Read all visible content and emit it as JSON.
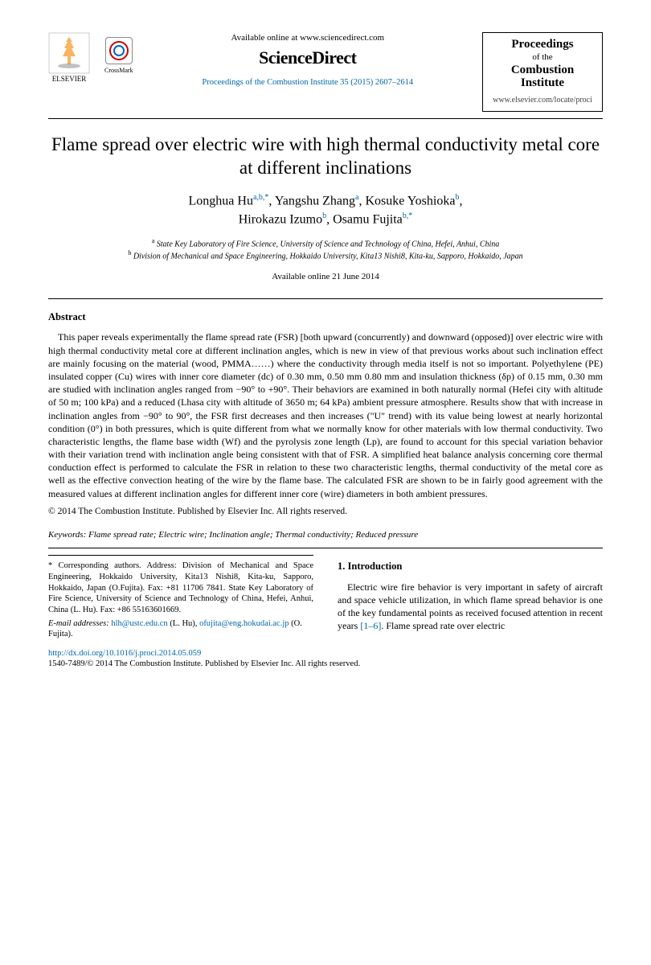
{
  "header": {
    "elsevier_label": "ELSEVIER",
    "crossmark_label": "CrossMark",
    "avail_online": "Available online at www.sciencedirect.com",
    "sciencedirect": "ScienceDirect",
    "journal_ref": "Proceedings of the Combustion Institute 35 (2015) 2607–2614",
    "journal_box_line1": "Proceedings",
    "journal_box_line2": "of the",
    "journal_box_line3": "Combustion",
    "journal_box_line4": "Institute",
    "journal_url": "www.elsevier.com/locate/proci"
  },
  "title": "Flame spread over electric wire with high thermal conductivity metal core at different inclinations",
  "authors_line1": "Longhua Hu",
  "authors_sup1": "a,b,*",
  "authors_line1b": ", Yangshu Zhang",
  "authors_sup1b": "a",
  "authors_line1c": ", Kosuke Yoshioka",
  "authors_sup1c": "b",
  "authors_line1d": ",",
  "authors_line2": "Hirokazu Izumo",
  "authors_sup2": "b",
  "authors_line2b": ", Osamu Fujita",
  "authors_sup2b": "b,*",
  "affiliations": {
    "a": "State Key Laboratory of Fire Science, University of Science and Technology of China, Hefei, Anhui, China",
    "b": "Division of Mechanical and Space Engineering, Hokkaido University, Kita13 Nishi8, Kita-ku, Sapporo, Hokkaido, Japan"
  },
  "avail_date": "Available online 21 June 2014",
  "abstract_head": "Abstract",
  "abstract": "This paper reveals experimentally the flame spread rate (FSR) [both upward (concurrently) and downward (opposed)] over electric wire with high thermal conductivity metal core at different inclination angles, which is new in view of that previous works about such inclination effect are mainly focusing on the material (wood, PMMA……) where the conductivity through media itself is not so important. Polyethylene (PE) insulated copper (Cu) wires with inner core diameter (dc) of 0.30 mm, 0.50 mm 0.80 mm and insulation thickness (δp) of 0.15 mm, 0.30 mm are studied with inclination angles ranged from −90° to +90°. Their behaviors are examined in both naturally normal (Hefei city with altitude of 50 m; 100 kPa) and a reduced (Lhasa city with altitude of 3650 m; 64 kPa) ambient pressure atmosphere. Results show that with increase in inclination angles from −90° to 90°, the FSR first decreases and then increases (\"U\" trend) with its value being lowest at nearly horizontal condition (0°) in both pressures, which is quite different from what we normally know for other materials with low thermal conductivity. Two characteristic lengths, the flame base width (Wf) and the pyrolysis zone length (Lp), are found to account for this special variation behavior with their variation trend with inclination angle being consistent with that of FSR. A simplified heat balance analysis concerning core thermal conduction effect is performed to calculate the FSR in relation to these two characteristic lengths, thermal conductivity of the metal core as well as the effective convection heating of the wire by the flame base. The calculated FSR are shown to be in fairly good agreement with the measured values at different inclination angles for different inner core (wire) diameters in both ambient pressures.",
  "copyright": "© 2014 The Combustion Institute. Published by Elsevier Inc. All rights reserved.",
  "keywords_label": "Keywords:",
  "keywords": "Flame spread rate; Electric wire; Inclination angle; Thermal conductivity; Reduced pressure",
  "footer": {
    "corr": "* Corresponding authors. Address: Division of Mechanical and Space Engineering, Hokkaido University, Kita13 Nishi8, Kita-ku, Sapporo, Hokkaido, Japan (O.Fujita). Fax: +81 11706 7841. State Key Laboratory of Fire Science, University of Science and Technology of China, Hefei, Anhui, China (L. Hu). Fax: +86 55163601669.",
    "email_label": "E-mail addresses:",
    "email1": "hlh@ustc.edu.cn",
    "email1_who": " (L. Hu), ",
    "email2": "ofujita@eng.hokudai.ac.jp",
    "email2_who": " (O. Fujita)."
  },
  "intro_head": "1. Introduction",
  "intro": "Electric wire fire behavior is very important in safety of aircraft and space vehicle utilization, in which flame spread behavior is one of the key fundamental points as received focused attention in recent years [1–6]. Flame spread rate over electric",
  "doi": "http://dx.doi.org/10.1016/j.proci.2014.05.059",
  "issn_line": "1540-7489/© 2014 The Combustion Institute. Published by Elsevier Inc. All rights reserved.",
  "colors": {
    "link": "#0066aa",
    "text": "#000000",
    "bg": "#ffffff"
  }
}
